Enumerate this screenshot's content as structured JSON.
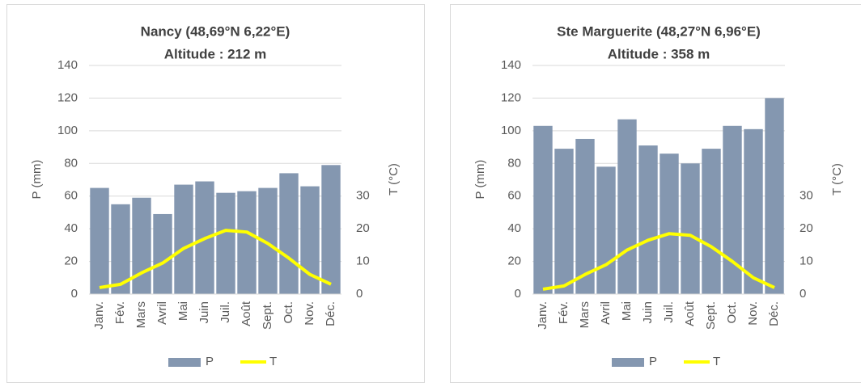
{
  "chart_data": [
    {
      "type": "bar",
      "title": "Nancy (48,69°N 6,22°E)",
      "subtitle": "Altitude : 212 m",
      "categories": [
        "Janv.",
        "Fév.",
        "Mars",
        "Avril",
        "Mai",
        "Juin",
        "Juil.",
        "Août",
        "Sept.",
        "Oct.",
        "Nov.",
        "Déc."
      ],
      "series": [
        {
          "name": "P",
          "type": "bar",
          "color": "#8497b0",
          "values": [
            65,
            55,
            59,
            49,
            67,
            69,
            62,
            63,
            65,
            74,
            66,
            79
          ]
        },
        {
          "name": "T",
          "type": "line",
          "axis": "y2",
          "color": "#ffff00",
          "values": [
            2,
            3,
            6.5,
            9.5,
            14,
            17,
            19.5,
            19,
            15.5,
            11,
            6,
            3
          ]
        }
      ],
      "ylabel": "P (mm)",
      "y2label": "T (°C)",
      "ylim": [
        0,
        140
      ],
      "yticks": [
        0,
        20,
        40,
        60,
        80,
        100,
        120,
        140
      ],
      "y2lim": [
        0,
        70
      ],
      "y2ticks": [
        0,
        10,
        20,
        30
      ],
      "grid": true,
      "legend": "bottom"
    },
    {
      "type": "bar",
      "title": "Ste Marguerite (48,27°N 6,96°E)",
      "subtitle": "Altitude : 358 m",
      "categories": [
        "Janv.",
        "Fév.",
        "Mars",
        "Avril",
        "Mai",
        "Juin",
        "Juil.",
        "Août",
        "Sept.",
        "Oct.",
        "Nov.",
        "Déc."
      ],
      "series": [
        {
          "name": "P",
          "type": "bar",
          "color": "#8497b0",
          "values": [
            103,
            89,
            95,
            78,
            107,
            91,
            86,
            80,
            89,
            103,
            101,
            120
          ]
        },
        {
          "name": "T",
          "type": "line",
          "axis": "y2",
          "color": "#ffff00",
          "values": [
            1.5,
            2.5,
            6,
            9,
            13.5,
            16.5,
            18.5,
            18,
            14.5,
            10,
            5,
            2
          ]
        }
      ],
      "ylabel": "P (mm)",
      "y2label": "T (°C)",
      "ylim": [
        0,
        140
      ],
      "yticks": [
        0,
        20,
        40,
        60,
        80,
        100,
        120,
        140
      ],
      "y2lim": [
        0,
        70
      ],
      "y2ticks": [
        0,
        10,
        20,
        30
      ],
      "grid": true,
      "legend": "bottom"
    }
  ]
}
